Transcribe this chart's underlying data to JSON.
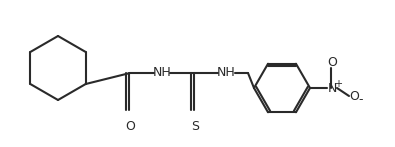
{
  "background_color": "#ffffff",
  "line_color": "#2a2a2a",
  "line_width": 1.5,
  "figsize": [
    3.95,
    1.47
  ],
  "dpi": 100,
  "atoms": {
    "O_label": "O",
    "S_label": "S",
    "NH1_label": "NH",
    "NH2_label": "NH",
    "N_label": "N",
    "plus_label": "+",
    "O2_label": "O",
    "minus_label": "-"
  }
}
